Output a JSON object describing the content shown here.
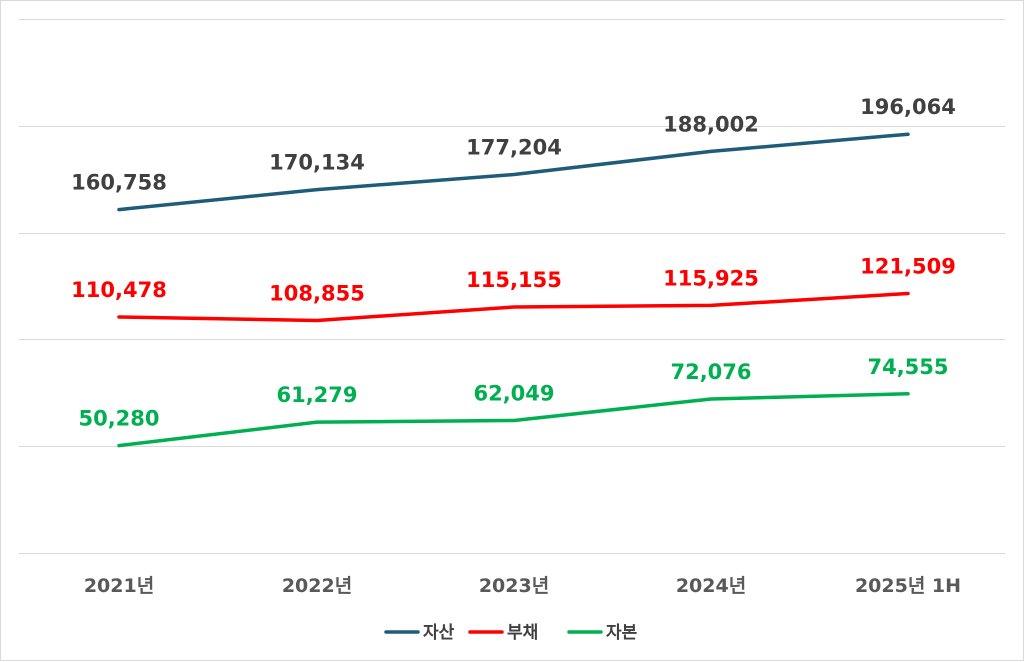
{
  "chart_data": {
    "type": "line",
    "categories": [
      "2021년",
      "2022년",
      "2023년",
      "2024년",
      "2025년 1H"
    ],
    "series": [
      {
        "name": "자산",
        "color": "#1f5c7a",
        "values": [
          160758,
          170134,
          177204,
          188002,
          196064
        ],
        "labels": [
          "160,758",
          "170,134",
          "177,204",
          "188,002",
          "196,064"
        ]
      },
      {
        "name": "부채",
        "color": "#ff0000",
        "values": [
          110478,
          108855,
          115155,
          115925,
          121509
        ],
        "labels": [
          "110,478",
          "108,855",
          "115,155",
          "115,925",
          "121,509"
        ]
      },
      {
        "name": "자본",
        "color": "#00b050",
        "values": [
          50280,
          61279,
          62049,
          72076,
          74555
        ],
        "labels": [
          "50,280",
          "61,279",
          "62,049",
          "72,076",
          "74,555"
        ]
      }
    ],
    "ylim": [
      0,
      250000
    ],
    "grid": true,
    "legend_position": "bottom"
  }
}
